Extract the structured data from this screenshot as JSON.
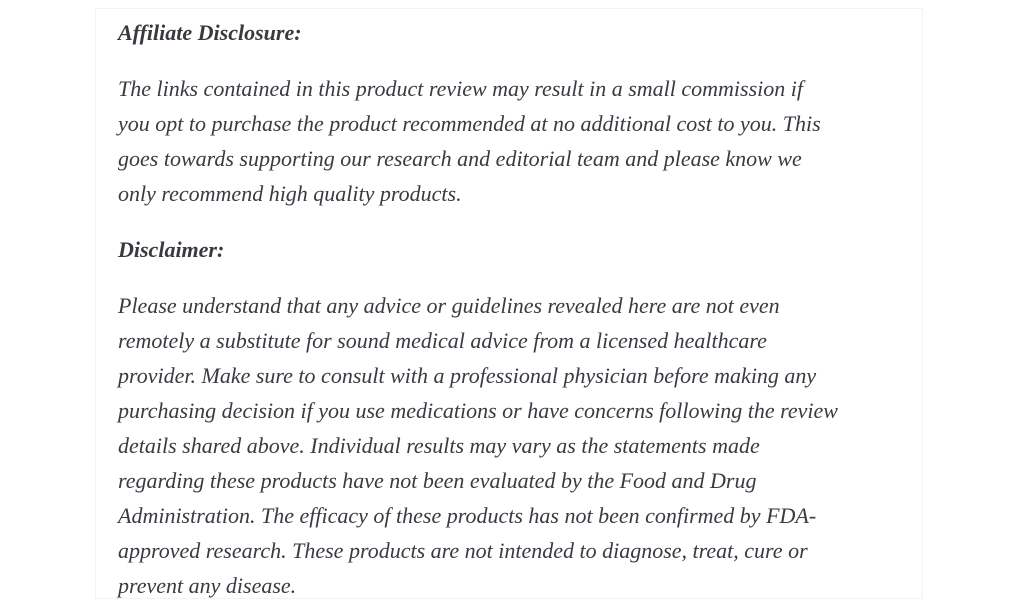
{
  "page": {
    "background_color": "#ffffff",
    "card_border_color": "#f3f3f3",
    "heading_color": "#393940",
    "body_text_color": "#3a3a42"
  },
  "content": {
    "affiliate_heading": "Affiliate Disclosure:",
    "affiliate_paragraph_lines": [
      "The links contained in this product review may result in a small commission if",
      "you opt to purchase the product recommended at no additional cost to you. This",
      "goes towards supporting our research and editorial team and please know we",
      "only recommend high quality products."
    ],
    "disclaimer_heading": "Disclaimer:",
    "disclaimer_paragraph_lines": [
      "Please understand that any advice or guidelines revealed here are not even",
      "remotely a substitute for sound medical advice from a licensed healthcare",
      "provider. Make sure to consult with a professional physician before making any",
      "purchasing decision if you use medications or have concerns following the review",
      "details shared above. Individual results may vary as the statements made",
      "regarding these products have not been evaluated by the Food and Drug",
      "Administration. The efficacy of these products has not been confirmed by FDA-",
      "approved research. These products are not intended to diagnose, treat, cure or",
      "prevent any disease."
    ]
  }
}
